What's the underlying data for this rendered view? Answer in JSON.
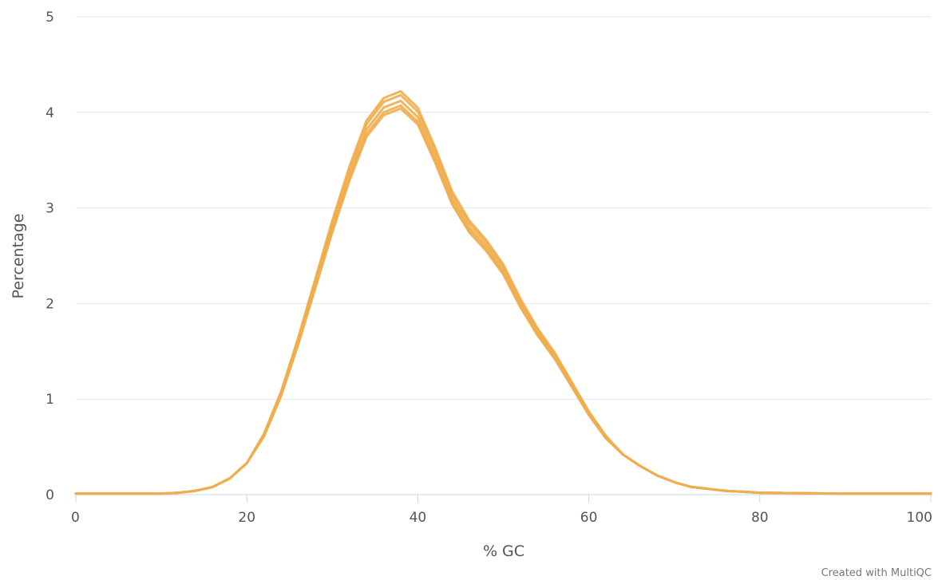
{
  "chart_data": {
    "type": "line",
    "title": "",
    "xlabel": "% GC",
    "ylabel": "Percentage",
    "xlim": [
      0,
      100
    ],
    "ylim": [
      0,
      5
    ],
    "xticks": [
      "0",
      "20",
      "40",
      "60",
      "80",
      "100"
    ],
    "yticks": [
      "0",
      "1",
      "2",
      "3",
      "4",
      "5"
    ],
    "grid": "horizontal",
    "line_color": "#f0ad4e",
    "series": [
      {
        "offset": 0.0,
        "values_ref": "base"
      },
      {
        "offset": 0.06,
        "values_ref": "base"
      },
      {
        "offset": -0.05,
        "values_ref": "base"
      },
      {
        "offset": 0.1,
        "values_ref": "base"
      },
      {
        "offset": -0.08,
        "values_ref": "base"
      }
    ],
    "base": {
      "x": [
        0,
        2,
        4,
        6,
        8,
        10,
        12,
        14,
        16,
        18,
        20,
        22,
        24,
        26,
        28,
        30,
        32,
        34,
        36,
        38,
        40,
        42,
        44,
        46,
        48,
        50,
        52,
        54,
        56,
        58,
        60,
        62,
        64,
        66,
        68,
        70,
        72,
        74,
        76,
        78,
        80,
        85,
        90,
        95,
        100
      ],
      "y": [
        0.01,
        0.01,
        0.01,
        0.01,
        0.01,
        0.01,
        0.02,
        0.04,
        0.08,
        0.17,
        0.33,
        0.62,
        1.05,
        1.6,
        2.2,
        2.8,
        3.35,
        3.82,
        4.05,
        4.12,
        3.95,
        3.55,
        3.1,
        2.8,
        2.6,
        2.35,
        2.0,
        1.7,
        1.45,
        1.15,
        0.85,
        0.6,
        0.42,
        0.3,
        0.2,
        0.13,
        0.08,
        0.06,
        0.04,
        0.03,
        0.02,
        0.015,
        0.01,
        0.01,
        0.01
      ]
    },
    "credit": "Created with MultiQC"
  }
}
